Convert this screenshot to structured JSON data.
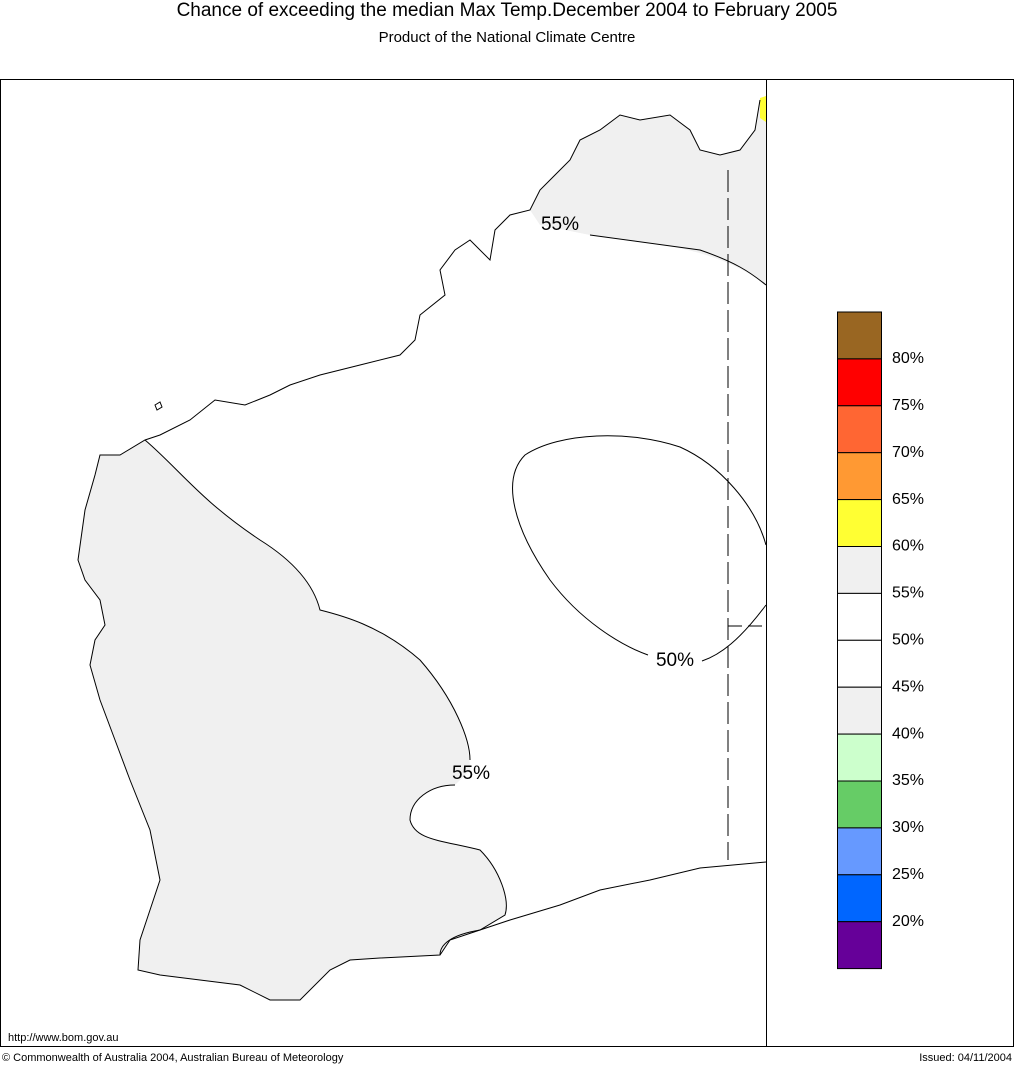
{
  "header": {
    "title": "Chance of exceeding the median Max Temp.December 2004 to February 2005",
    "subtitle": "Product of the National Climate Centre"
  },
  "map": {
    "contour_labels": [
      "55%",
      "50%",
      "55%"
    ],
    "url": "http://www.bom.gov.au"
  },
  "legend": {
    "colors": [
      "#996622",
      "#ff0000",
      "#ff6633",
      "#ff9933",
      "#ffff33",
      "#f0f0f0",
      "#ffffff",
      "#ffffff",
      "#f0f0f0",
      "#ccffcc",
      "#66cc66",
      "#6699ff",
      "#0066ff",
      "#660099"
    ],
    "labels": [
      "80%",
      "75%",
      "70%",
      "65%",
      "60%",
      "55%",
      "50%",
      "45%",
      "40%",
      "35%",
      "30%",
      "25%",
      "20%"
    ]
  },
  "footer": {
    "copyright": "© Commonwealth of Australia 2004, Australian Bureau of Meteorology",
    "issued": "Issued: 04/11/2004"
  }
}
